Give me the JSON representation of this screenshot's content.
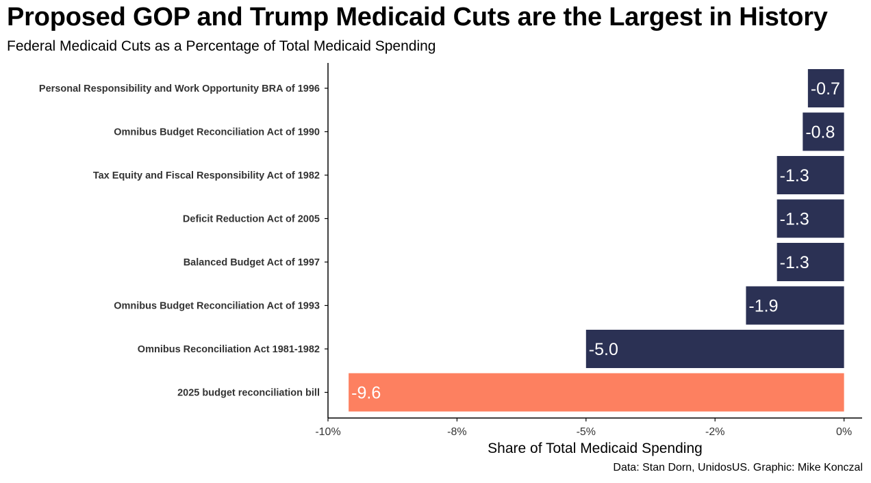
{
  "chart_data": {
    "type": "bar",
    "orientation": "horizontal",
    "title": "Proposed GOP and Trump Medicaid Cuts are the Largest in History",
    "subtitle": "Federal Medicaid Cuts as a Percentage of Total Medicaid Spending",
    "caption": "Data: Stan Dorn, UnidosUS. Graphic: Mike Konczal",
    "xlabel": "Share of Total Medicaid Spending",
    "ylabel": "",
    "xlim": [
      -10,
      0.35
    ],
    "xticks": [
      {
        "value": -10,
        "label": "-10%"
      },
      {
        "value": -7.5,
        "label": "-8%"
      },
      {
        "value": -5,
        "label": "-5%"
      },
      {
        "value": -2.5,
        "label": "-2%"
      },
      {
        "value": 0,
        "label": "0%"
      }
    ],
    "categories": [
      "Personal Responsibility and Work Opportunity BRA of 1996",
      "Omnibus Budget Reconciliation Act of 1990",
      "Tax Equity and Fiscal Responsibility Act of 1982",
      "Deficit Reduction Act of 2005",
      "Balanced Budget Act of 1997",
      "Omnibus Budget Reconciliation Act of 1993",
      "Omnibus Reconciliation Act 1981-1982",
      "2025 budget reconciliation bill"
    ],
    "values": [
      -0.7,
      -0.8,
      -1.3,
      -1.3,
      -1.3,
      -1.9,
      -5.0,
      -9.6
    ],
    "value_labels": [
      "-0.7",
      "-0.8",
      "-1.3",
      "-1.3",
      "-1.3",
      "-1.9",
      "-5.0",
      "-9.6"
    ],
    "highlight": [
      false,
      false,
      false,
      false,
      false,
      false,
      false,
      true
    ],
    "colors": {
      "bar": "#2b3154",
      "highlight": "#fd8060",
      "axis": "#000000"
    },
    "grid": false
  }
}
